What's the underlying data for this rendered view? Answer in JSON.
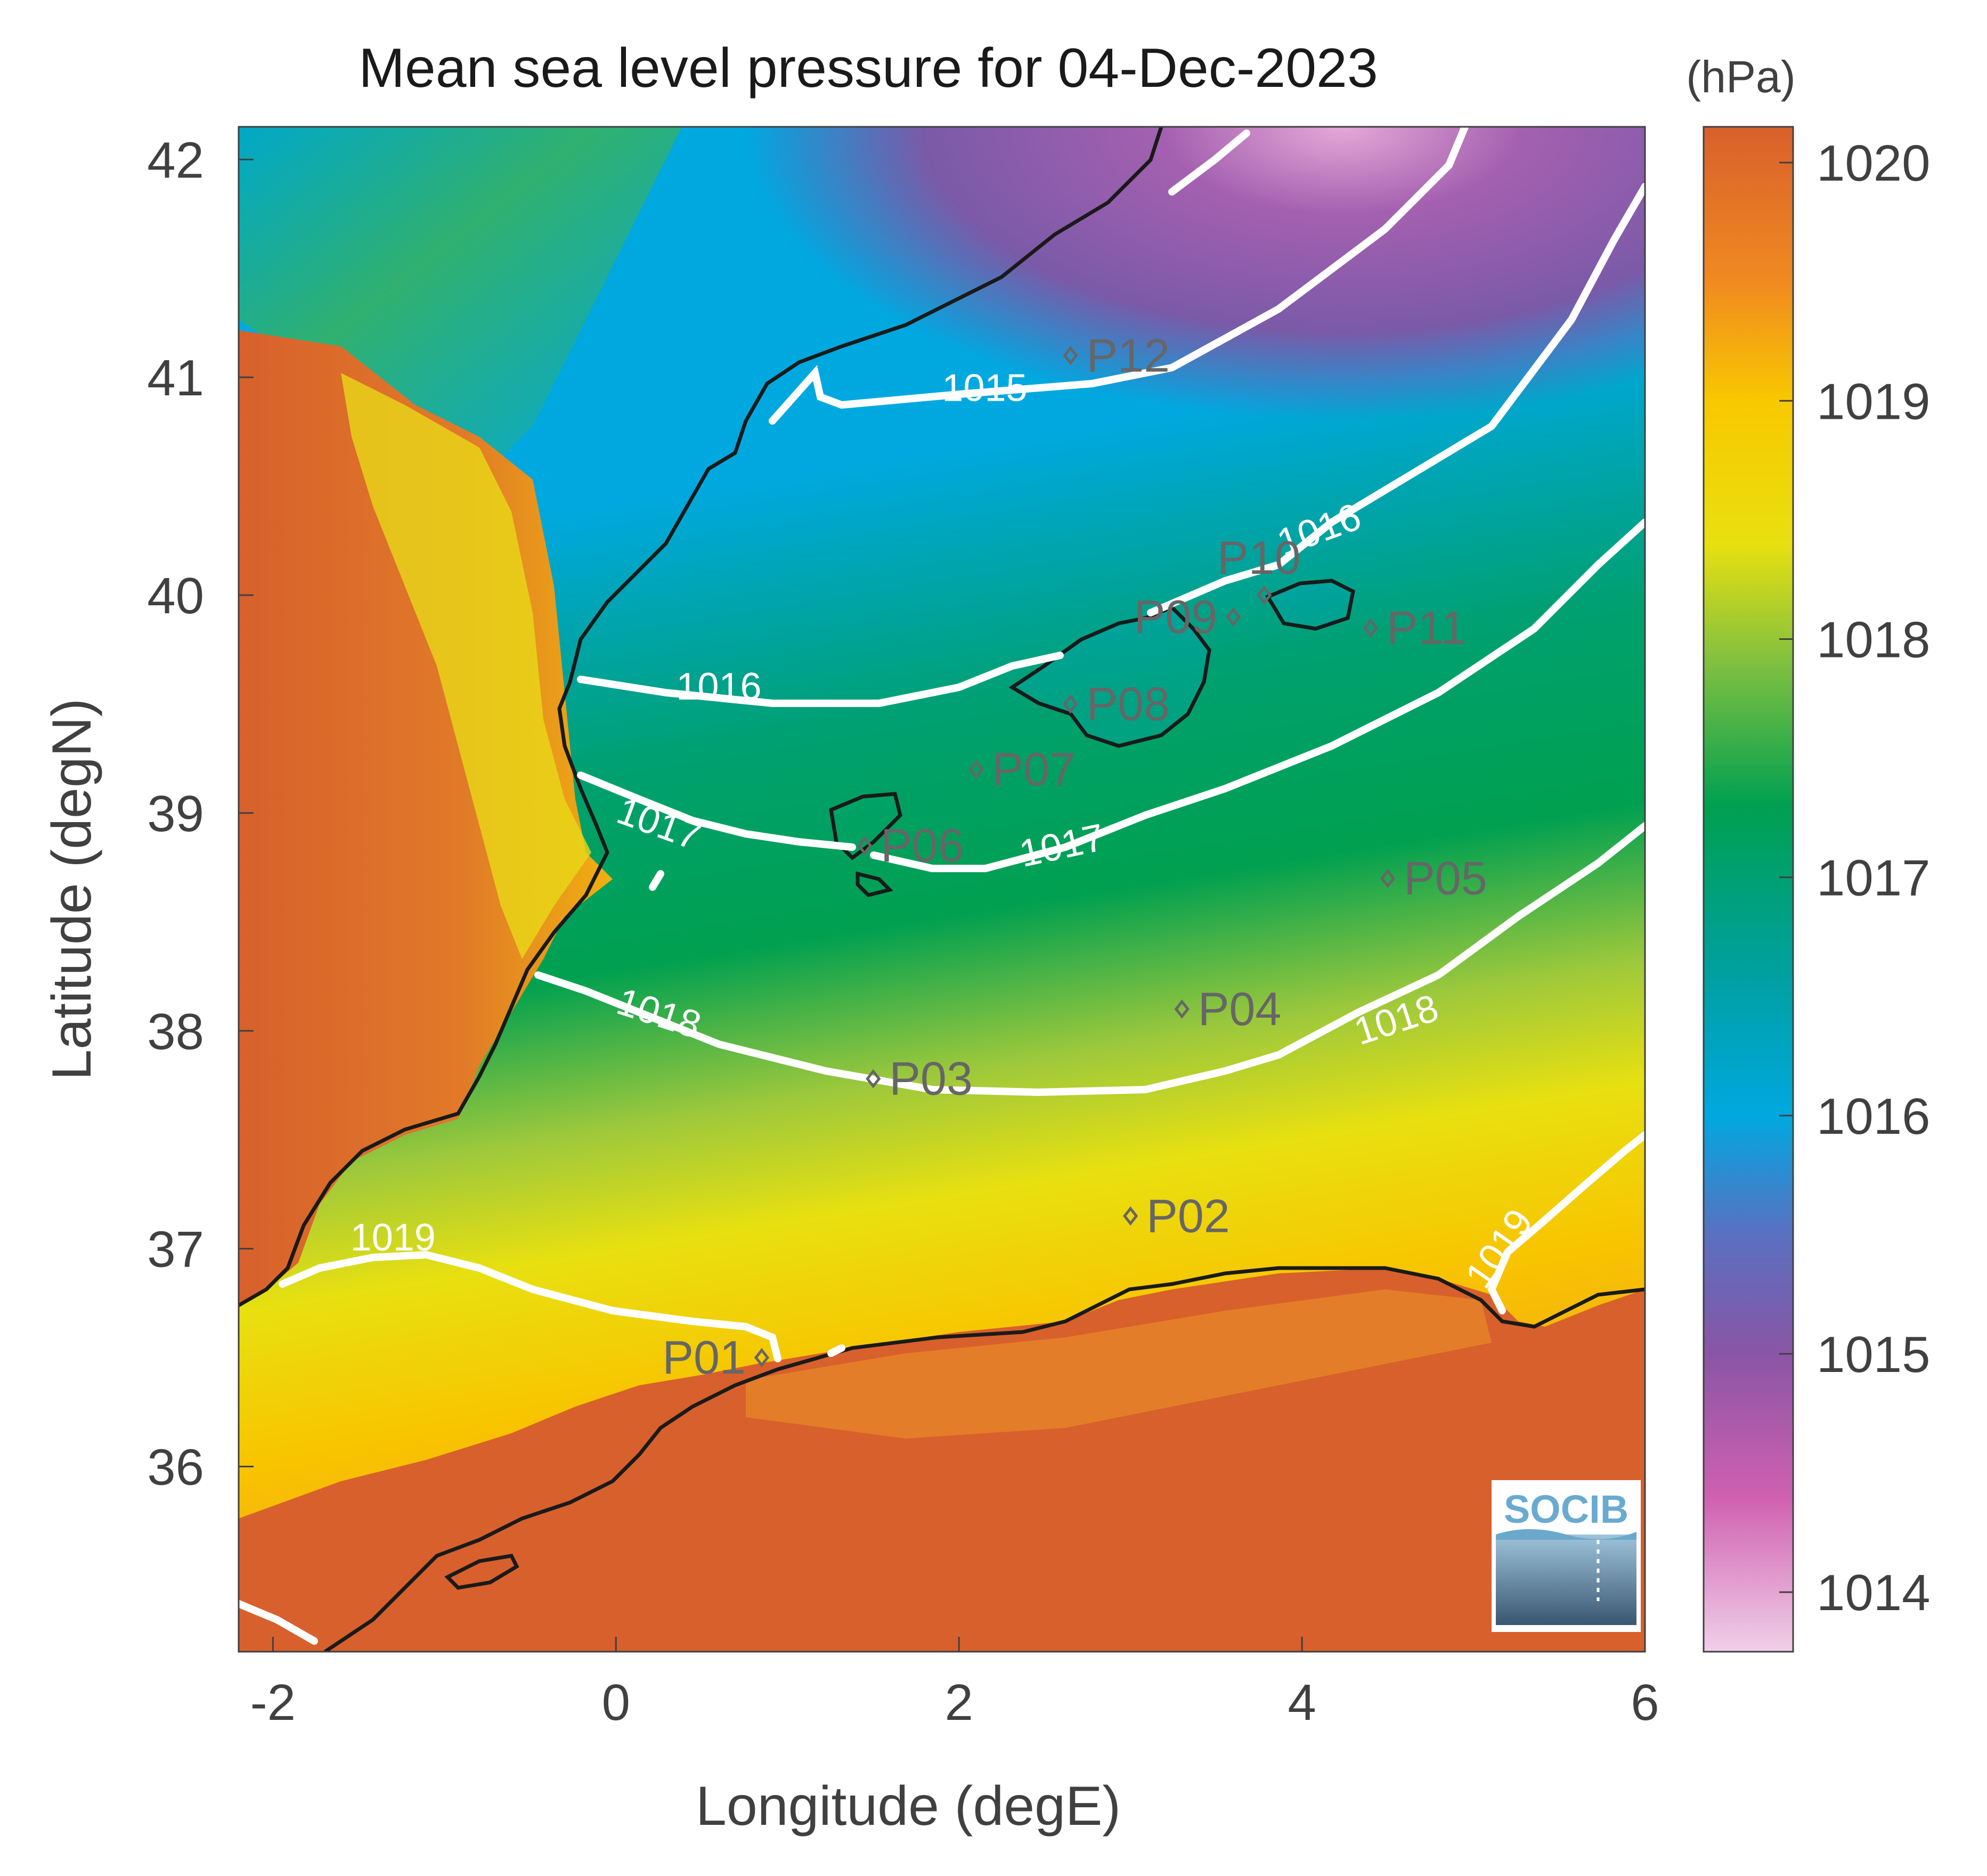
{
  "title": "Mean sea level pressure for 04-Dec-2023",
  "colorbar_unit": "(hPa)",
  "xlabel": "Longitude (degE)",
  "ylabel": "Latitude (degN)",
  "xlim": [
    -2.2,
    6.0
  ],
  "ylim": [
    35.15,
    42.15
  ],
  "xticks": [
    -2,
    0,
    2,
    4,
    6
  ],
  "xtick_labels": [
    "-2",
    "0",
    "2",
    "4",
    "6"
  ],
  "yticks": [
    36,
    37,
    38,
    39,
    40,
    41,
    42
  ],
  "ytick_labels": [
    "36",
    "37",
    "38",
    "39",
    "40",
    "41",
    "42"
  ],
  "colorbar": {
    "min": 1013.75,
    "max": 1020.15,
    "ticks": [
      1014,
      1015,
      1016,
      1017,
      1018,
      1019,
      1020
    ],
    "tick_labels": [
      "1014",
      "1015",
      "1016",
      "1017",
      "1018",
      "1019",
      "1020"
    ],
    "stops": [
      {
        "value": 1013.75,
        "color": "#f0d0e8"
      },
      {
        "value": 1014.4,
        "color": "#d060b0"
      },
      {
        "value": 1015.0,
        "color": "#8a55a5"
      },
      {
        "value": 1015.5,
        "color": "#5a70c0"
      },
      {
        "value": 1016.0,
        "color": "#00a8e0"
      },
      {
        "value": 1016.6,
        "color": "#00a0a0"
      },
      {
        "value": 1017.3,
        "color": "#00a050"
      },
      {
        "value": 1017.9,
        "color": "#80c040"
      },
      {
        "value": 1018.4,
        "color": "#e8e010"
      },
      {
        "value": 1019.0,
        "color": "#f8c800"
      },
      {
        "value": 1019.5,
        "color": "#f08a20"
      },
      {
        "value": 1020.15,
        "color": "#d8602c"
      }
    ]
  },
  "contour_labels": [
    {
      "text": "1015",
      "lon": 2.15,
      "lat": 40.95,
      "angle": 0
    },
    {
      "text": "1016",
      "lon": 4.1,
      "lat": 40.3,
      "angle": -20
    },
    {
      "text": "1016",
      "lon": 0.6,
      "lat": 39.58,
      "angle": 0
    },
    {
      "text": "1017",
      "lon": 0.25,
      "lat": 38.95,
      "angle": 20
    },
    {
      "text": "1017",
      "lon": 2.6,
      "lat": 38.85,
      "angle": -12
    },
    {
      "text": "1018",
      "lon": 0.25,
      "lat": 38.08,
      "angle": 18
    },
    {
      "text": "1018",
      "lon": 4.55,
      "lat": 38.05,
      "angle": -18
    },
    {
      "text": "1019",
      "lon": -1.3,
      "lat": 37.05,
      "angle": 0
    },
    {
      "text": "1019",
      "lon": 5.15,
      "lat": 37.0,
      "angle": -55
    }
  ],
  "points": [
    {
      "label": "P01",
      "lon": 0.85,
      "lat": 36.5,
      "side": "left"
    },
    {
      "label": "P02",
      "lon": 3.0,
      "lat": 37.15,
      "side": "right"
    },
    {
      "label": "P03",
      "lon": 1.5,
      "lat": 37.78,
      "side": "right"
    },
    {
      "label": "P04",
      "lon": 3.3,
      "lat": 38.1,
      "side": "right"
    },
    {
      "label": "P05",
      "lon": 4.5,
      "lat": 38.7,
      "side": "right"
    },
    {
      "label": "P06",
      "lon": 1.45,
      "lat": 38.85,
      "side": "right"
    },
    {
      "label": "P07",
      "lon": 2.1,
      "lat": 39.2,
      "side": "right"
    },
    {
      "label": "P08",
      "lon": 2.65,
      "lat": 39.5,
      "side": "right"
    },
    {
      "label": "P09",
      "lon": 3.6,
      "lat": 39.9,
      "side": "left"
    },
    {
      "label": "P10",
      "lon": 3.78,
      "lat": 40.0,
      "side": "top"
    },
    {
      "label": "P11",
      "lon": 4.4,
      "lat": 39.85,
      "side": "right"
    },
    {
      "label": "P12",
      "lon": 2.65,
      "lat": 41.1,
      "side": "right"
    }
  ],
  "logo_text": "SOCIB"
}
